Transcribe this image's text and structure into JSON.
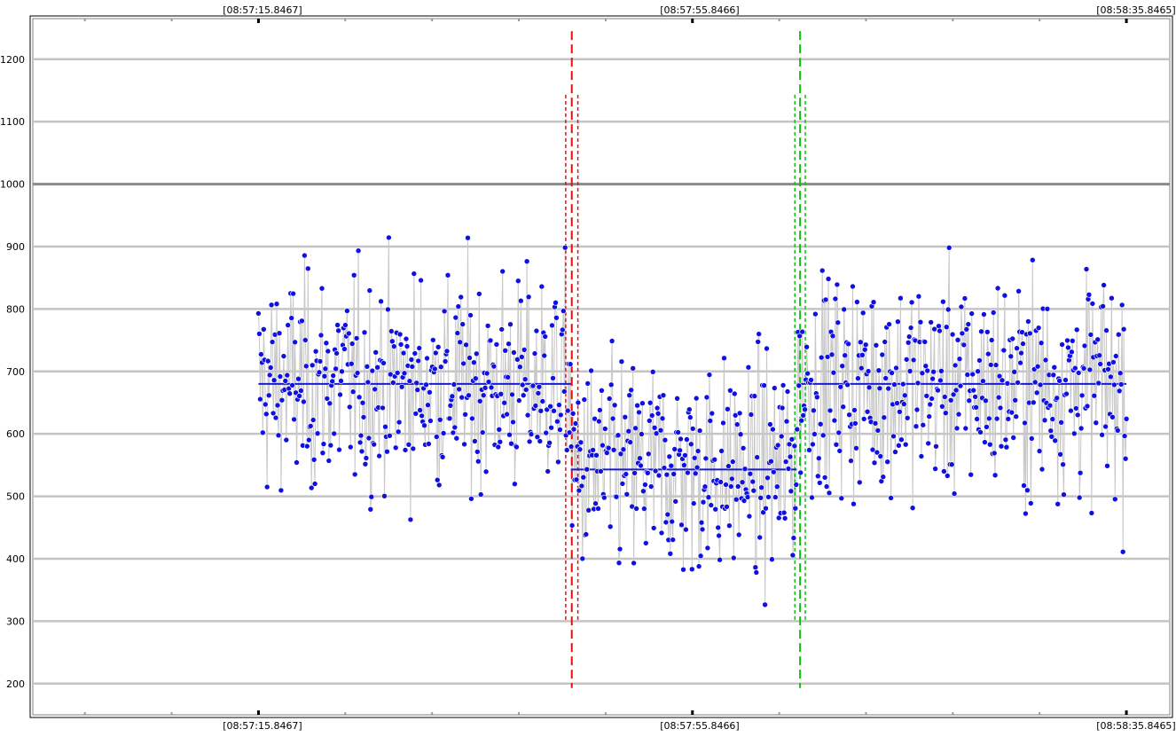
{
  "chart_data": {
    "type": "scatter",
    "title": "",
    "xlabel": "",
    "ylabel": "",
    "x_tick_labels": [
      "[08:57:15.8467]",
      "[08:57:55.8466]",
      "[08:58:35.8465]"
    ],
    "y_ticks": [
      200,
      300,
      400,
      500,
      600,
      700,
      800,
      900,
      1000,
      1100,
      1200
    ],
    "ylim": [
      150,
      1265
    ],
    "xlim": [
      -26,
      105
    ],
    "grid": true,
    "point_color": "#1010e0",
    "connector_color": "#c8c8c8",
    "mean_line_color": "#1a1ad0",
    "change_point_1_color": "#e01010",
    "change_point_2_color": "#10c010",
    "series": [
      {
        "count": 1000,
        "segments": [
          {
            "x_start": 0,
            "x_end": 36,
            "mean": 680
          },
          {
            "x_start": 36,
            "x_end": 62,
            "mean": 543
          },
          {
            "x_start": 62,
            "x_end": 100,
            "mean": 680
          }
        ]
      }
    ],
    "change_points": [
      {
        "x": 36.1,
        "interval": [
          35.4,
          36.8
        ],
        "color": "red"
      },
      {
        "x": 62.4,
        "interval": [
          61.8,
          63.0
        ],
        "color": "green"
      }
    ]
  }
}
